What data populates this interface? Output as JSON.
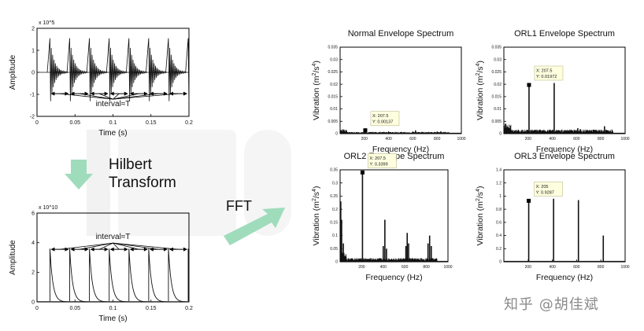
{
  "annotations": {
    "hilbert_line1": "Hilbert",
    "hilbert_line2": "Transform",
    "fft": "FFT",
    "watermark": "知乎 @胡佳斌"
  },
  "colors": {
    "axis": "#000000",
    "signal": "#111111",
    "arrow": "#8fd6ae",
    "tooltip_bg": "#ffffe0",
    "logo": "#e6e6e6"
  },
  "chart_data": [
    {
      "id": "time-raw",
      "type": "line",
      "title": "",
      "xlabel": "Time (s)",
      "ylabel": "Amplitude",
      "exponent": "x 10^5",
      "xlim": [
        0,
        0.2
      ],
      "ylim": [
        -2,
        2
      ],
      "xticks": [
        "0",
        "0.05",
        "0.1",
        "0.15",
        "0.2"
      ],
      "yticks": [
        "-2",
        "-1",
        "0",
        "1",
        "2"
      ],
      "impulse_times": [
        0.017,
        0.043,
        0.069,
        0.095,
        0.121,
        0.147,
        0.173,
        0.199
      ],
      "impulse_peak": 1.55,
      "annotation": "interval≈T"
    },
    {
      "id": "time-envelope",
      "type": "line",
      "title": "",
      "xlabel": "Time (s)",
      "ylabel": "Amplitude",
      "exponent": "x 10^10",
      "xlim": [
        0,
        0.2
      ],
      "ylim": [
        0,
        6
      ],
      "xticks": [
        "0",
        "0.05",
        "0.1",
        "0.15",
        "0.2"
      ],
      "yticks": [
        "0",
        "2",
        "4",
        "6"
      ],
      "impulse_times": [
        0.017,
        0.043,
        0.069,
        0.095,
        0.121,
        0.147,
        0.173,
        0.199
      ],
      "impulse_peak": 3.6,
      "annotation": "interval≈T"
    },
    {
      "id": "normal-spectrum",
      "type": "bar",
      "title": "Normal  Envelope Spectrum",
      "xlabel": "Frequency (Hz)",
      "ylabel": "Vibration (m2/s4)",
      "xlim": [
        0,
        1000
      ],
      "ylim": [
        0,
        0.035
      ],
      "xticks": [
        "200",
        "400",
        "600",
        "800",
        "1000"
      ],
      "yticks": [
        "0",
        "0.005",
        "0.01",
        "0.015",
        "0.02",
        "0.025",
        "0.03",
        "0.035"
      ],
      "peaks": [
        [
          10,
          0.0012
        ],
        [
          207.5,
          0.00137
        ],
        [
          415,
          0.0006
        ],
        [
          622,
          0.0013
        ],
        [
          830,
          0.0009
        ]
      ],
      "noise": 0.0006,
      "datatip": {
        "x": 207.5,
        "y": 0.00137,
        "xtext": "X: 207.5",
        "ytext": "Y: 0.00137"
      }
    },
    {
      "id": "orl1-spectrum",
      "type": "bar",
      "title": "ORL1 Envelope Spectrum",
      "xlabel": "Frequency (Hz)",
      "ylabel": "Vibration (m2/s4)",
      "xlim": [
        0,
        1000
      ],
      "ylim": [
        0,
        0.035
      ],
      "xticks": [
        "200",
        "400",
        "600",
        "800",
        "1000"
      ],
      "yticks": [
        "0",
        "0.005",
        "0.01",
        "0.015",
        "0.02",
        "0.025",
        "0.03",
        "0.035"
      ],
      "peaks": [
        [
          15,
          0.004
        ],
        [
          207.5,
          0.01972
        ],
        [
          300,
          0.0016
        ],
        [
          415,
          0.0205
        ],
        [
          520,
          0.0012
        ],
        [
          610,
          0.0022
        ],
        [
          630,
          0.0018
        ],
        [
          720,
          0.0012
        ],
        [
          830,
          0.003
        ]
      ],
      "noise": 0.0014,
      "datatip": {
        "x": 207.5,
        "y": 0.01972,
        "xtext": "X: 207.5",
        "ytext": "Y: 0.01972"
      }
    },
    {
      "id": "orl2-spectrum",
      "type": "bar",
      "title": "ORL2 Envelope Spectrum",
      "xlabel": "Frequency (Hz)",
      "ylabel": "Vibration (m2/s4)",
      "xlim": [
        0,
        1000
      ],
      "ylim": [
        0,
        0.35
      ],
      "xticks": [
        "200",
        "400",
        "600",
        "800",
        "1000"
      ],
      "yticks": [
        "0",
        "0.05",
        "0.1",
        "0.15",
        "0.2",
        "0.25",
        "0.3",
        "0.35"
      ],
      "peaks": [
        [
          6,
          0.23
        ],
        [
          14,
          0.16
        ],
        [
          30,
          0.07
        ],
        [
          207.5,
          0.3399
        ],
        [
          400,
          0.06
        ],
        [
          415,
          0.16
        ],
        [
          430,
          0.05
        ],
        [
          610,
          0.06
        ],
        [
          622,
          0.11
        ],
        [
          635,
          0.07
        ],
        [
          815,
          0.07
        ],
        [
          830,
          0.1
        ],
        [
          845,
          0.06
        ]
      ],
      "noise": 0.012,
      "datatip": {
        "x": 207.5,
        "y": 0.3399,
        "xtext": "X: 207.5",
        "ytext": "Y: 0.3399"
      }
    },
    {
      "id": "orl3-spectrum",
      "type": "bar",
      "title": "ORL3 Envelope Spectrum",
      "xlabel": "Frequency (Hz)",
      "ylabel": "Vibration (m2/s4)",
      "xlim": [
        0,
        1000
      ],
      "ylim": [
        0,
        1.4
      ],
      "xticks": [
        "200",
        "400",
        "600",
        "800",
        "1000"
      ],
      "yticks": [
        "0",
        "0.2",
        "0.4",
        "0.6",
        "0.8",
        "1",
        "1.2",
        "1.4"
      ],
      "peaks": [
        [
          205,
          0.9287
        ],
        [
          410,
          0.96
        ],
        [
          615,
          0.94
        ],
        [
          820,
          0.4
        ]
      ],
      "noise": 0.0,
      "datatip": {
        "x": 205,
        "y": 0.9287,
        "xtext": "X: 205",
        "ytext": "Y: 0.9287"
      }
    }
  ]
}
